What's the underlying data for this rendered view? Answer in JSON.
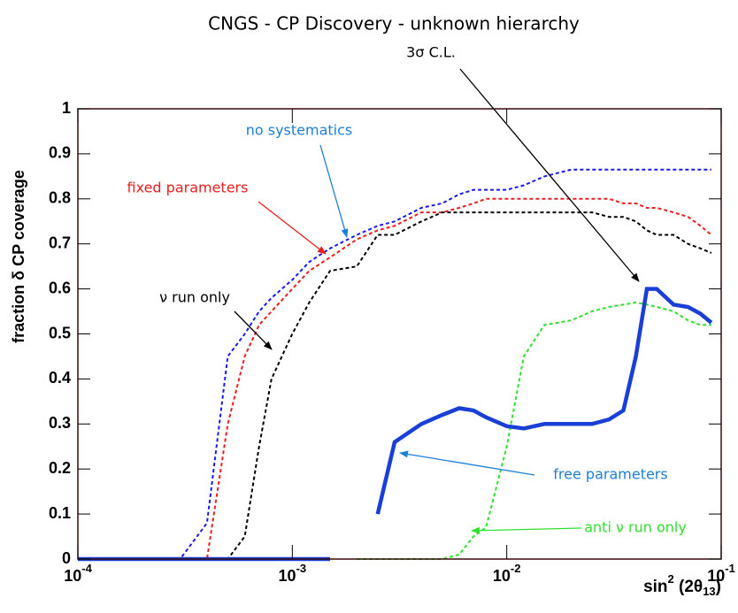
{
  "chart_data": {
    "type": "line",
    "title": "CNGS - CP Discovery - unknown hierarchy",
    "ylabel": "fraction δ CP coverage",
    "xlabel": {
      "base": "sin",
      "sup": "2",
      "mid": " (2θ",
      "sub": "13",
      "end": ")"
    },
    "log_x": true,
    "xlim": [
      0.0001,
      0.1
    ],
    "xticks": [
      {
        "value": 0.0001,
        "label": "10",
        "exponent": "-4"
      },
      {
        "value": 0.001,
        "label": "10",
        "exponent": "-3"
      },
      {
        "value": 0.01,
        "label": "10",
        "exponent": "-2"
      },
      {
        "value": 0.1,
        "label": "10",
        "exponent": "-1"
      }
    ],
    "ylim": [
      0,
      1
    ],
    "yticks": [
      0,
      0.1,
      0.2,
      0.3,
      0.4,
      0.5,
      0.6,
      0.7,
      0.8,
      0.9,
      1
    ],
    "x": [
      0.0001,
      0.0003,
      0.0004,
      0.0005,
      0.0006,
      0.0007,
      0.0008,
      0.001,
      0.0012,
      0.0015,
      0.002,
      0.0025,
      0.003,
      0.004,
      0.005,
      0.006,
      0.007,
      0.008,
      0.01,
      0.012,
      0.015,
      0.02,
      0.025,
      0.03,
      0.035,
      0.04,
      0.045,
      0.05,
      0.06,
      0.07,
      0.08,
      0.09
    ],
    "series": [
      {
        "name": "no systematics",
        "color": "#1a1aee",
        "style": "dashed",
        "values": [
          0,
          0,
          0.08,
          0.45,
          0.5,
          0.55,
          0.58,
          0.62,
          0.66,
          0.69,
          0.72,
          0.74,
          0.75,
          0.78,
          0.79,
          0.81,
          0.82,
          0.82,
          0.82,
          0.83,
          0.85,
          0.865,
          0.865,
          0.865,
          0.865,
          0.865,
          0.865,
          0.865,
          0.865,
          0.865,
          0.865,
          0.865
        ]
      },
      {
        "name": "fixed parameters",
        "color": "#e8201f",
        "style": "dashed",
        "values": [
          0,
          0,
          0,
          0.3,
          0.45,
          0.52,
          0.55,
          0.6,
          0.64,
          0.67,
          0.71,
          0.73,
          0.74,
          0.77,
          0.77,
          0.78,
          0.79,
          0.8,
          0.8,
          0.8,
          0.8,
          0.8,
          0.8,
          0.8,
          0.79,
          0.79,
          0.78,
          0.78,
          0.77,
          0.76,
          0.74,
          0.72
        ]
      },
      {
        "name": "ν run only",
        "color": "#000000",
        "style": "dashed",
        "values": [
          0,
          0,
          0,
          0,
          0.05,
          0.25,
          0.4,
          0.5,
          0.57,
          0.64,
          0.65,
          0.72,
          0.72,
          0.75,
          0.77,
          0.77,
          0.77,
          0.77,
          0.77,
          0.77,
          0.77,
          0.77,
          0.77,
          0.76,
          0.76,
          0.75,
          0.73,
          0.72,
          0.72,
          0.7,
          0.69,
          0.68
        ]
      },
      {
        "name": "anti ν run only",
        "color": "#2fe02f",
        "style": "dashed",
        "values": [
          null,
          null,
          null,
          null,
          null,
          null,
          null,
          null,
          null,
          null,
          0,
          0,
          0,
          0,
          0,
          0.01,
          0.05,
          0.07,
          0.25,
          0.45,
          0.52,
          0.53,
          0.55,
          0.56,
          0.565,
          0.57,
          0.565,
          0.56,
          0.55,
          0.53,
          0.52,
          0.52
        ]
      },
      {
        "name": "free parameters",
        "color": "#1a3fd6",
        "style": "solid",
        "values": [
          0,
          0,
          0,
          0,
          0,
          0,
          0,
          0,
          0,
          0,
          null,
          0.1,
          0.26,
          0.3,
          0.32,
          0.335,
          0.33,
          0.315,
          0.295,
          0.29,
          0.3,
          0.3,
          0.3,
          0.31,
          0.33,
          0.45,
          0.6,
          0.6,
          0.565,
          0.56,
          0.545,
          0.525
        ]
      }
    ],
    "annotations": [
      {
        "text": "3σ C.L.",
        "color": "#000000"
      },
      {
        "text": "no systematics",
        "color": "#1c7fd8"
      },
      {
        "text": "fixed parameters",
        "color": "#e8201f"
      },
      {
        "text": "ν run only",
        "color": "#000000"
      },
      {
        "text": "free parameters",
        "color": "#1c7fd8"
      },
      {
        "text": "anti ν run only",
        "color": "#2fe02f"
      }
    ]
  }
}
